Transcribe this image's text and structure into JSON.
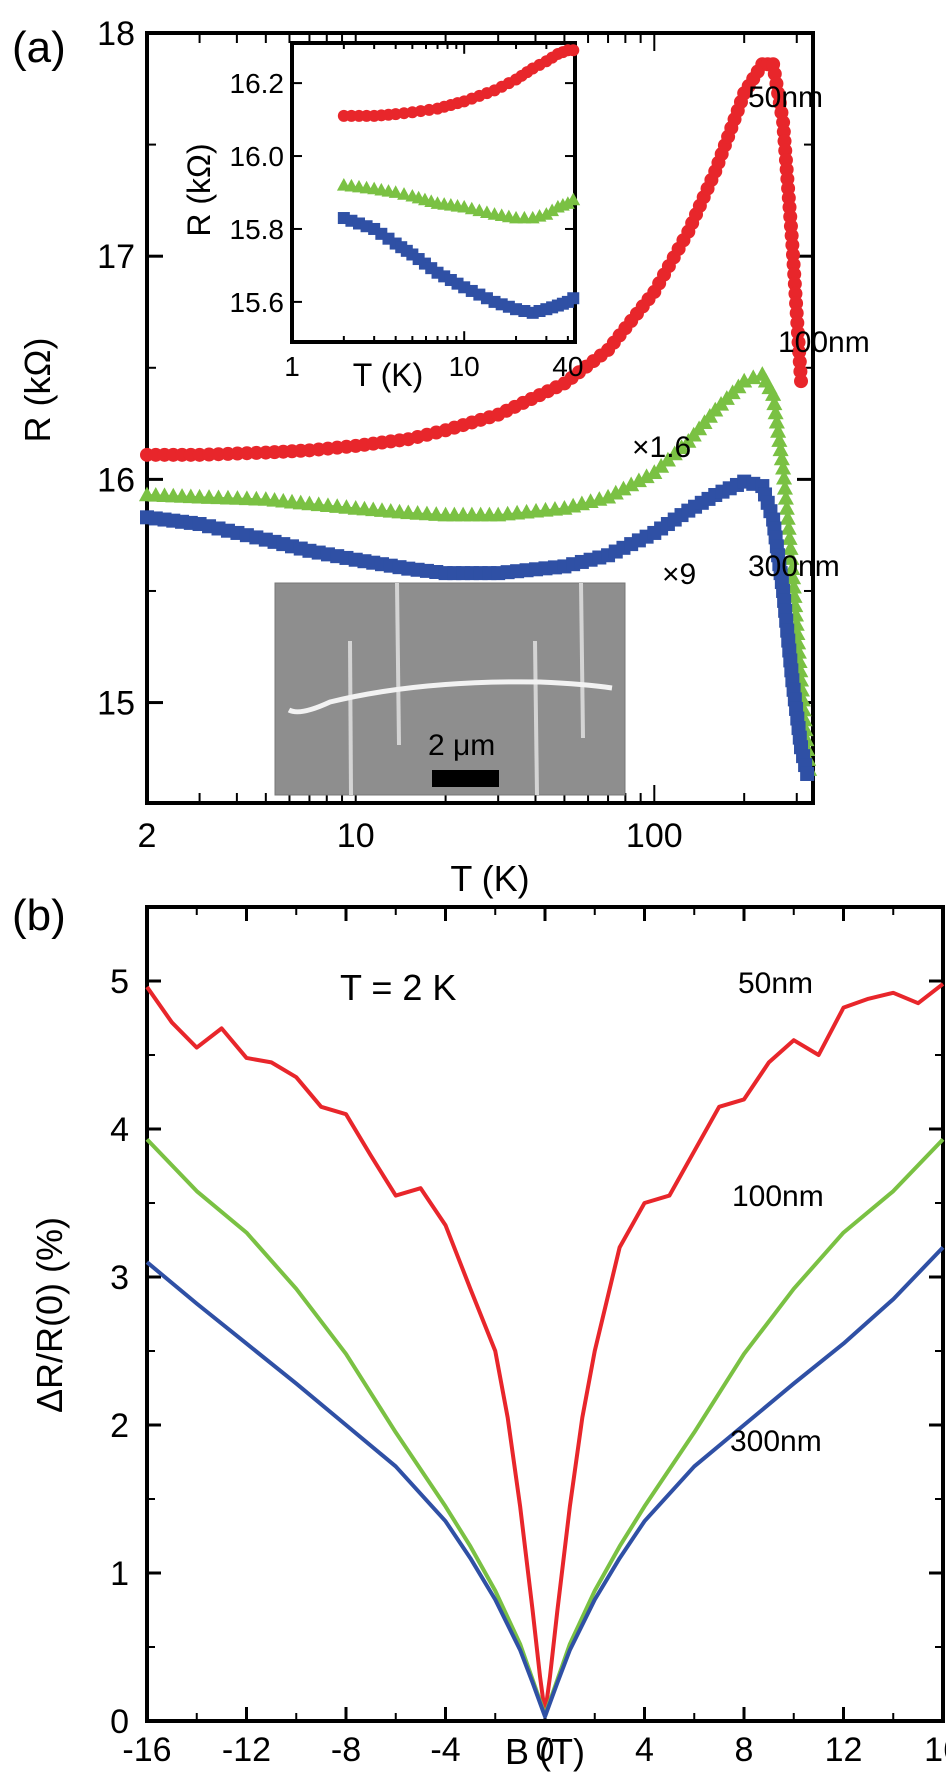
{
  "panels": {
    "a_label": "(a)",
    "b_label": "(b)"
  },
  "inset_image": {
    "scale_bar_label": "2 μm"
  },
  "colors": {
    "50nm": "#e8262b",
    "100nm": "#7ac143",
    "300nm": "#2f50a5"
  },
  "chart_data": [
    {
      "type": "scatter",
      "panel": "(a)",
      "xlabel": "T (K)",
      "ylabel": "R (kΩ)",
      "xscale": "log",
      "xlim": [
        2,
        340
      ],
      "ylim": [
        14.55,
        18.0
      ],
      "xticks": [
        2,
        10,
        100
      ],
      "yticks": [
        15,
        16,
        17,
        18
      ],
      "series": [
        {
          "name": "50nm",
          "annotation": "",
          "marker": "circle",
          "color": "#e8262b",
          "x": [
            2,
            3,
            5,
            7,
            10,
            15,
            20,
            30,
            50,
            70,
            100,
            130,
            160,
            200,
            230,
            250,
            270,
            290,
            310
          ],
          "y": [
            16.11,
            16.11,
            16.12,
            16.13,
            16.15,
            16.18,
            16.22,
            16.29,
            16.43,
            16.58,
            16.84,
            17.11,
            17.38,
            17.73,
            17.86,
            17.86,
            17.6,
            17.05,
            16.44
          ]
        },
        {
          "name": "100nm",
          "annotation": "×1.6",
          "marker": "triangle",
          "color": "#7ac143",
          "x": [
            2,
            3,
            5,
            7,
            10,
            15,
            20,
            30,
            50,
            70,
            100,
            130,
            160,
            200,
            230,
            250,
            270,
            290,
            310,
            330
          ],
          "y": [
            15.93,
            15.92,
            15.91,
            15.89,
            15.87,
            15.85,
            15.84,
            15.84,
            15.87,
            15.92,
            16.03,
            16.17,
            16.31,
            16.44,
            16.47,
            16.38,
            16.05,
            15.6,
            15.1,
            14.7
          ]
        },
        {
          "name": "300nm",
          "annotation": "×9",
          "marker": "square",
          "color": "#2f50a5",
          "x": [
            2,
            3,
            5,
            7,
            10,
            15,
            20,
            30,
            50,
            70,
            100,
            130,
            160,
            200,
            230,
            250,
            270,
            290,
            310,
            325
          ],
          "y": [
            15.83,
            15.8,
            15.73,
            15.68,
            15.64,
            15.6,
            15.58,
            15.58,
            15.61,
            15.66,
            15.76,
            15.86,
            15.93,
            15.99,
            15.97,
            15.82,
            15.5,
            15.1,
            14.8,
            14.68
          ]
        }
      ]
    },
    {
      "type": "scatter",
      "panel": "(a) inset",
      "xlabel": "T (K)",
      "ylabel": "R (kΩ)",
      "xscale": "log",
      "xlim": [
        1,
        44
      ],
      "ylim": [
        15.49,
        16.31
      ],
      "xticks": [
        1,
        10,
        40
      ],
      "yticks": [
        15.6,
        15.8,
        16.0,
        16.2
      ],
      "series": [
        {
          "name": "50nm",
          "marker": "circle",
          "color": "#e8262b",
          "x": [
            2,
            3,
            4,
            5,
            7,
            10,
            15,
            20,
            25,
            30,
            35,
            40,
            43
          ],
          "y": [
            16.11,
            16.11,
            16.115,
            16.12,
            16.13,
            16.15,
            16.18,
            16.21,
            16.24,
            16.26,
            16.28,
            16.29,
            16.29
          ]
        },
        {
          "name": "100nm",
          "marker": "triangle",
          "color": "#7ac143",
          "x": [
            2,
            3,
            4,
            5,
            7,
            10,
            15,
            20,
            25,
            30,
            35,
            40,
            43
          ],
          "y": [
            15.92,
            15.91,
            15.9,
            15.89,
            15.87,
            15.86,
            15.84,
            15.83,
            15.83,
            15.84,
            15.86,
            15.87,
            15.88
          ]
        },
        {
          "name": "300nm",
          "marker": "square",
          "color": "#2f50a5",
          "x": [
            2,
            3,
            4,
            5,
            7,
            10,
            15,
            20,
            25,
            30,
            35,
            40,
            43
          ],
          "y": [
            15.83,
            15.8,
            15.76,
            15.73,
            15.68,
            15.64,
            15.6,
            15.58,
            15.57,
            15.58,
            15.59,
            15.6,
            15.61
          ]
        }
      ]
    },
    {
      "type": "line",
      "panel": "(b)",
      "xlabel": "B (T)",
      "ylabel": "ΔR/R(0) (%)",
      "annotation": "T = 2 K",
      "xlim": [
        -16,
        16
      ],
      "ylim": [
        0,
        5.5
      ],
      "xticks": [
        -16,
        -12,
        -8,
        -4,
        0,
        4,
        8,
        12,
        16
      ],
      "yticks": [
        0,
        1,
        2,
        3,
        4,
        5
      ],
      "series": [
        {
          "name": "50nm",
          "color": "#e8262b",
          "x": [
            -16,
            -15,
            -14,
            -13,
            -12,
            -11,
            -10,
            -9,
            -8,
            -7,
            -6,
            -5,
            -4,
            -3,
            -2,
            -1.5,
            -1,
            -0.5,
            -0.2,
            0,
            0.2,
            0.5,
            1,
            1.5,
            2,
            3,
            4,
            5,
            6,
            7,
            8,
            9,
            10,
            11,
            12,
            13,
            14,
            15,
            16
          ],
          "y": [
            4.96,
            4.72,
            4.55,
            4.68,
            4.48,
            4.45,
            4.35,
            4.15,
            4.1,
            3.82,
            3.55,
            3.6,
            3.35,
            2.92,
            2.5,
            2.05,
            1.45,
            0.75,
            0.3,
            0.05,
            0.3,
            0.75,
            1.45,
            2.05,
            2.5,
            3.2,
            3.5,
            3.55,
            3.85,
            4.15,
            4.2,
            4.45,
            4.6,
            4.5,
            4.82,
            4.88,
            4.92,
            4.85,
            4.98
          ]
        },
        {
          "name": "100nm",
          "color": "#7ac143",
          "x": [
            -16,
            -14,
            -12,
            -10,
            -8,
            -6,
            -4,
            -3,
            -2,
            -1,
            -0.5,
            0,
            0.5,
            1,
            2,
            3,
            4,
            6,
            8,
            10,
            12,
            14,
            16
          ],
          "y": [
            3.93,
            3.58,
            3.3,
            2.92,
            2.48,
            1.95,
            1.45,
            1.18,
            0.88,
            0.52,
            0.28,
            0.04,
            0.28,
            0.52,
            0.88,
            1.18,
            1.45,
            1.95,
            2.48,
            2.92,
            3.3,
            3.58,
            3.93
          ]
        },
        {
          "name": "300nm",
          "color": "#2f50a5",
          "x": [
            -16,
            -14,
            -12,
            -10,
            -8,
            -6,
            -4,
            -3,
            -2,
            -1,
            -0.5,
            0,
            0.5,
            1,
            2,
            3,
            4,
            6,
            8,
            10,
            12,
            14,
            16
          ],
          "y": [
            3.1,
            2.82,
            2.55,
            2.28,
            2.0,
            1.72,
            1.35,
            1.1,
            0.82,
            0.48,
            0.26,
            0.03,
            0.26,
            0.48,
            0.82,
            1.1,
            1.35,
            1.72,
            2.0,
            2.28,
            2.55,
            2.85,
            3.2
          ]
        }
      ]
    }
  ]
}
